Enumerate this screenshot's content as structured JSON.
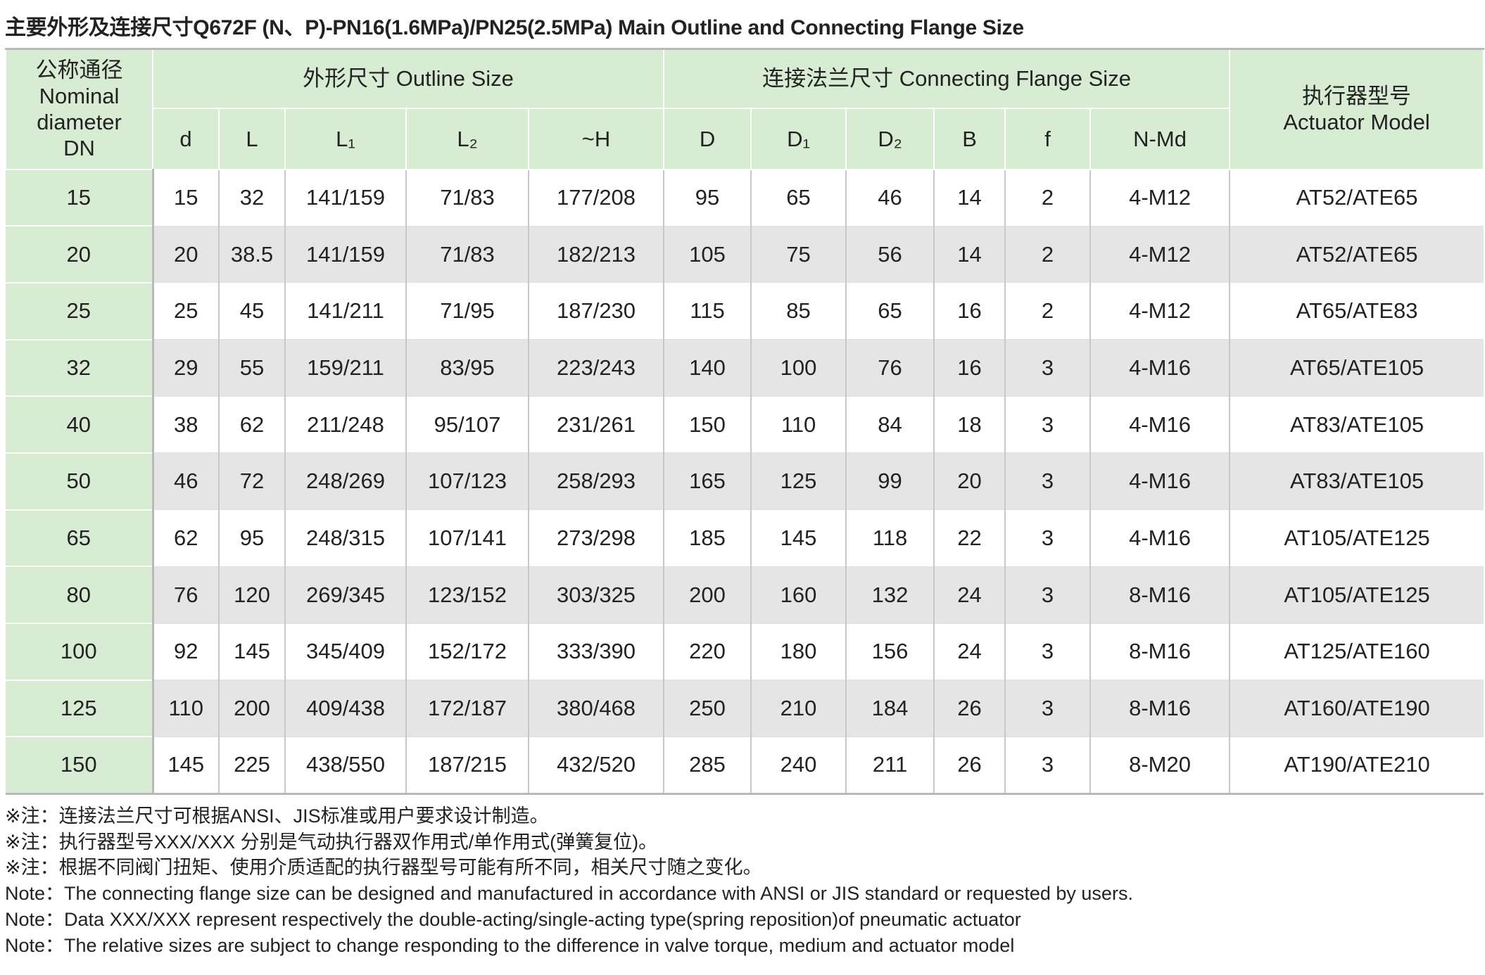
{
  "title": "主要外形及连接尺寸Q672F (N、P)-PN16(1.6MPa)/PN25(2.5MPa) Main Outline and Connecting Flange Size",
  "header": {
    "dn": [
      "公称通径",
      "Nominal",
      "diameter",
      "DN"
    ],
    "outline": "外形尺寸 Outline Size",
    "flange": "连接法兰尺寸 Connecting Flange Size",
    "actuator": [
      "执行器型号",
      "Actuator Model"
    ],
    "columns": [
      "d",
      "L",
      "L₁",
      "L₂",
      "~H",
      "D",
      "D₁",
      "D₂",
      "B",
      "f",
      "N-Md"
    ]
  },
  "table": {
    "rows": [
      [
        15,
        15,
        32,
        "141/159",
        "71/83",
        "177/208",
        95,
        65,
        46,
        14,
        2,
        "4-M12",
        "AT52/ATE65"
      ],
      [
        20,
        20,
        38.5,
        "141/159",
        "71/83",
        "182/213",
        105,
        75,
        56,
        14,
        2,
        "4-M12",
        "AT52/ATE65"
      ],
      [
        25,
        25,
        45,
        "141/211",
        "71/95",
        "187/230",
        115,
        85,
        65,
        16,
        2,
        "4-M12",
        "AT65/ATE83"
      ],
      [
        32,
        29,
        55,
        "159/211",
        "83/95",
        "223/243",
        140,
        100,
        76,
        16,
        3,
        "4-M16",
        "AT65/ATE105"
      ],
      [
        40,
        38,
        62,
        "211/248",
        "95/107",
        "231/261",
        150,
        110,
        84,
        18,
        3,
        "4-M16",
        "AT83/ATE105"
      ],
      [
        50,
        46,
        72,
        "248/269",
        "107/123",
        "258/293",
        165,
        125,
        99,
        20,
        3,
        "4-M16",
        "AT83/ATE105"
      ],
      [
        65,
        62,
        95,
        "248/315",
        "107/141",
        "273/298",
        185,
        145,
        118,
        22,
        3,
        "4-M16",
        "AT105/ATE125"
      ],
      [
        80,
        76,
        120,
        "269/345",
        "123/152",
        "303/325",
        200,
        160,
        132,
        24,
        3,
        "8-M16",
        "AT105/ATE125"
      ],
      [
        100,
        92,
        145,
        "345/409",
        "152/172",
        "333/390",
        220,
        180,
        156,
        24,
        3,
        "8-M16",
        "AT125/ATE160"
      ],
      [
        125,
        110,
        200,
        "409/438",
        "172/187",
        "380/468",
        250,
        210,
        184,
        26,
        3,
        "8-M16",
        "AT160/ATE190"
      ],
      [
        150,
        145,
        225,
        "438/550",
        "187/215",
        "432/520",
        285,
        240,
        211,
        26,
        3,
        "8-M20",
        "AT190/ATE210"
      ]
    ]
  },
  "notes": [
    "※注：连接法兰尺寸可根据ANSI、JIS标准或用户要求设计制造。",
    "※注：执行器型号XXX/XXX 分别是气动执行器双作用式/单作用式(弹簧复位)。",
    "※注：根据不同阀门扭矩、使用介质适配的执行器型号可能有所不同，相关尺寸随之变化。",
    "Note：The connecting flange size can be designed and manufactured in accordance with ANSI or JIS standard or requested by users.",
    "Note：Data XXX/XXX represent respectively the double-acting/single-acting type(spring reposition)of pneumatic actuator",
    "Note：The relative sizes are subject to change responding to the difference in valve torque, medium and actuator model"
  ]
}
